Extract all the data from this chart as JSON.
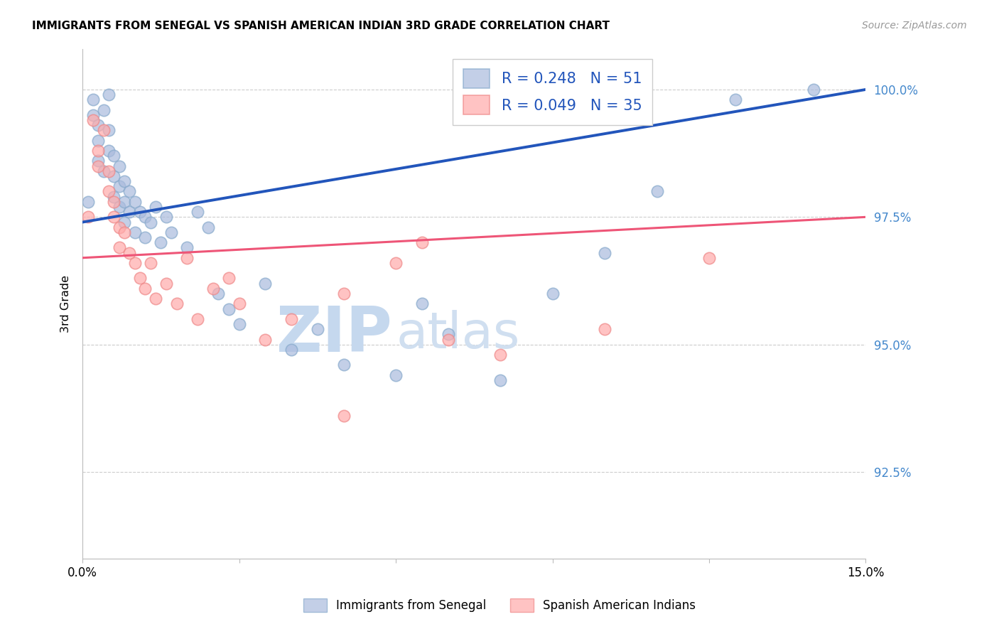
{
  "title": "IMMIGRANTS FROM SENEGAL VS SPANISH AMERICAN INDIAN 3RD GRADE CORRELATION CHART",
  "source": "Source: ZipAtlas.com",
  "ylabel": "3rd Grade",
  "yaxis_labels": [
    "100.0%",
    "97.5%",
    "95.0%",
    "92.5%"
  ],
  "yaxis_values": [
    1.0,
    0.975,
    0.95,
    0.925
  ],
  "xmin": 0.0,
  "xmax": 0.15,
  "ymin": 0.908,
  "ymax": 1.008,
  "legend_r1": "R = 0.248   N = 51",
  "legend_r2": "R = 0.049   N = 35",
  "blue_fill": "#AABBDD",
  "blue_edge": "#88AACC",
  "pink_fill": "#FFAAAA",
  "pink_edge": "#EE8888",
  "trendline_blue": "#2255BB",
  "trendline_pink": "#EE5577",
  "watermark_zip": "#C5D8EE",
  "watermark_atlas": "#D0DFF0",
  "grid_color": "#CCCCCC",
  "right_tick_color": "#4488CC",
  "blue_x": [
    0.001,
    0.002,
    0.002,
    0.003,
    0.003,
    0.003,
    0.004,
    0.004,
    0.005,
    0.005,
    0.005,
    0.006,
    0.006,
    0.006,
    0.007,
    0.007,
    0.007,
    0.008,
    0.008,
    0.008,
    0.009,
    0.009,
    0.01,
    0.01,
    0.011,
    0.012,
    0.012,
    0.013,
    0.014,
    0.015,
    0.016,
    0.017,
    0.02,
    0.022,
    0.024,
    0.026,
    0.028,
    0.03,
    0.035,
    0.04,
    0.045,
    0.05,
    0.06,
    0.065,
    0.07,
    0.08,
    0.09,
    0.1,
    0.11,
    0.125,
    0.14
  ],
  "blue_y": [
    0.978,
    0.998,
    0.995,
    0.993,
    0.99,
    0.986,
    0.996,
    0.984,
    0.992,
    0.988,
    0.999,
    0.987,
    0.983,
    0.979,
    0.985,
    0.981,
    0.977,
    0.982,
    0.978,
    0.974,
    0.98,
    0.976,
    0.978,
    0.972,
    0.976,
    0.975,
    0.971,
    0.974,
    0.977,
    0.97,
    0.975,
    0.972,
    0.969,
    0.976,
    0.973,
    0.96,
    0.957,
    0.954,
    0.962,
    0.949,
    0.953,
    0.946,
    0.944,
    0.958,
    0.952,
    0.943,
    0.96,
    0.968,
    0.98,
    0.998,
    1.0
  ],
  "pink_x": [
    0.001,
    0.002,
    0.003,
    0.003,
    0.004,
    0.005,
    0.005,
    0.006,
    0.006,
    0.007,
    0.007,
    0.008,
    0.009,
    0.01,
    0.011,
    0.012,
    0.013,
    0.014,
    0.016,
    0.018,
    0.02,
    0.022,
    0.025,
    0.028,
    0.03,
    0.035,
    0.04,
    0.05,
    0.06,
    0.065,
    0.07,
    0.08,
    0.1,
    0.12,
    0.05
  ],
  "pink_y": [
    0.975,
    0.994,
    0.988,
    0.985,
    0.992,
    0.984,
    0.98,
    0.978,
    0.975,
    0.973,
    0.969,
    0.972,
    0.968,
    0.966,
    0.963,
    0.961,
    0.966,
    0.959,
    0.962,
    0.958,
    0.967,
    0.955,
    0.961,
    0.963,
    0.958,
    0.951,
    0.955,
    0.96,
    0.966,
    0.97,
    0.951,
    0.948,
    0.953,
    0.967,
    0.936
  ],
  "blue_trendline_y0": 0.974,
  "blue_trendline_y1": 1.0,
  "pink_trendline_y0": 0.967,
  "pink_trendline_y1": 0.975
}
